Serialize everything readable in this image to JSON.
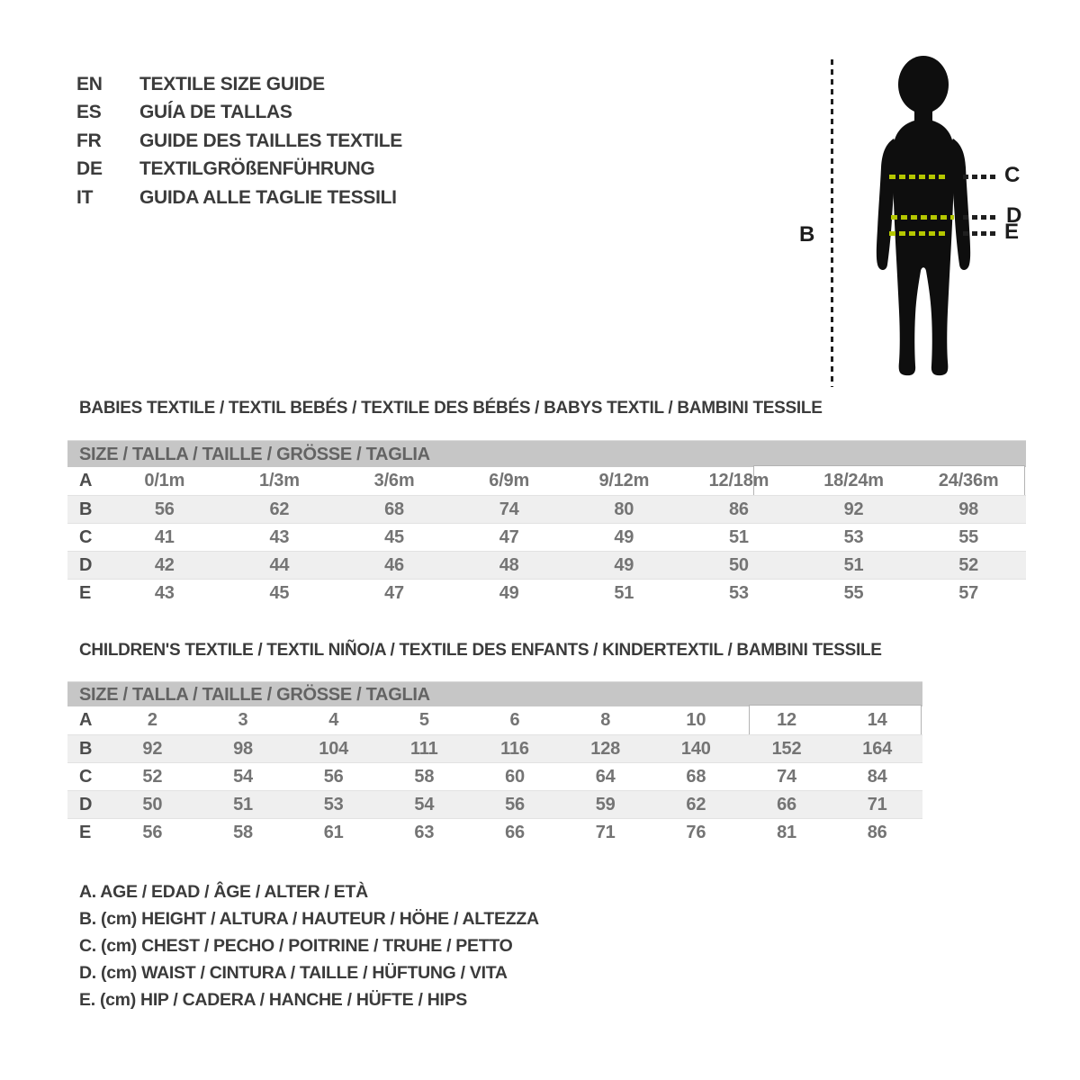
{
  "colors": {
    "accent_green": "#b5c700",
    "bar_gray": "#c6c6c6",
    "stripe_gray": "#efefef",
    "silhouette_black": "#0e0e0e",
    "text_dark": "#3b3b3b",
    "text_gray": "#747474"
  },
  "languages": [
    {
      "code": "EN",
      "label": "TEXTILE SIZE GUIDE"
    },
    {
      "code": "ES",
      "label": "GUÍA DE TALLAS"
    },
    {
      "code": "FR",
      "label": "GUIDE DES TAILLES TEXTILE"
    },
    {
      "code": "DE",
      "label": "TEXTILGRÖßENFÜHRUNG"
    },
    {
      "code": "IT",
      "label": "GUIDA ALLE TAGLIE TESSILI"
    }
  ],
  "figure": {
    "measure_labels": [
      "B",
      "C",
      "D",
      "E"
    ]
  },
  "babies_table": {
    "title": "BABIES TEXTILE / TEXTIL BEBÉS / TEXTILE DES BÉBÉS / BABYS TEXTIL / BAMBINI TESSILE",
    "header": "SIZE / TALLA / TAILLE / GRÖSSE / TAGLIA",
    "rows": [
      {
        "label": "A",
        "values": [
          "0/1m",
          "1/3m",
          "3/6m",
          "6/9m",
          "9/12m",
          "12/18m",
          "18/24m",
          "24/36m"
        ]
      },
      {
        "label": "B",
        "values": [
          "56",
          "62",
          "68",
          "74",
          "80",
          "86",
          "92",
          "98"
        ]
      },
      {
        "label": "C",
        "values": [
          "41",
          "43",
          "45",
          "47",
          "49",
          "51",
          "53",
          "55"
        ]
      },
      {
        "label": "D",
        "values": [
          "42",
          "44",
          "46",
          "48",
          "49",
          "50",
          "51",
          "52"
        ]
      },
      {
        "label": "E",
        "values": [
          "43",
          "45",
          "47",
          "49",
          "51",
          "53",
          "55",
          "57"
        ]
      }
    ]
  },
  "children_table": {
    "title": "CHILDREN'S TEXTILE / TEXTIL NIÑO/A / TEXTILE DES ENFANTS / KINDERTEXTIL / BAMBINI TESSILE",
    "header": "SIZE / TALLA / TAILLE / GRÖSSE / TAGLIA",
    "rows": [
      {
        "label": "A",
        "values": [
          "2",
          "3",
          "4",
          "5",
          "6",
          "8",
          "10",
          "12",
          "14"
        ]
      },
      {
        "label": "B",
        "values": [
          "92",
          "98",
          "104",
          "111",
          "116",
          "128",
          "140",
          "152",
          "164"
        ]
      },
      {
        "label": "C",
        "values": [
          "52",
          "54",
          "56",
          "58",
          "60",
          "64",
          "68",
          "74",
          "84"
        ]
      },
      {
        "label": "D",
        "values": [
          "50",
          "51",
          "53",
          "54",
          "56",
          "59",
          "62",
          "66",
          "71"
        ]
      },
      {
        "label": "E",
        "values": [
          "56",
          "58",
          "61",
          "63",
          "66",
          "71",
          "76",
          "81",
          "86"
        ]
      }
    ]
  },
  "legend": [
    "A. AGE / EDAD / ÂGE / ALTER / ETÀ",
    "B. (cm) HEIGHT / ALTURA / HAUTEUR / HÖHE / ALTEZZA",
    "C. (cm) CHEST / PECHO / POITRINE / TRUHE / PETTO",
    "D. (cm) WAIST / CINTURA / TAILLE / HÜFTUNG / VITA",
    "E. (cm) HIP / CADERA / HANCHE / HÜFTE / HIPS"
  ]
}
